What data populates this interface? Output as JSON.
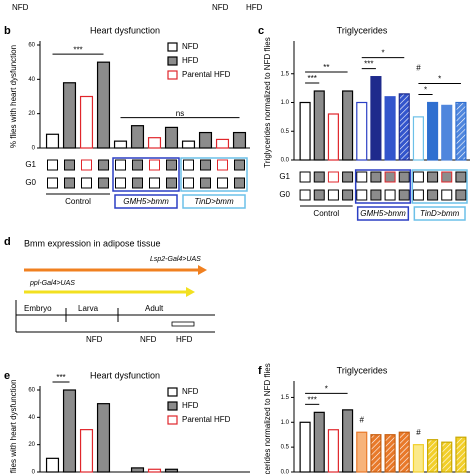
{
  "header": {
    "texts": [
      "NFD",
      "NFD",
      "HFD"
    ]
  },
  "chart_data": [
    {
      "type": "bar",
      "panel": "b",
      "title": "Heart dysfunction",
      "ylabel": "% flies with heart dysfunction",
      "values": [
        8,
        38,
        30,
        50,
        4,
        13,
        6,
        12,
        4,
        9,
        5,
        9
      ],
      "colors": [
        "#ffffff",
        "#8c8c8c",
        "#ffffff",
        "#8c8c8c",
        "#ffffff",
        "#8c8c8c",
        "#ffffff",
        "#8c8c8c",
        "#ffffff",
        "#8c8c8c",
        "#ffffff",
        "#8c8c8c"
      ],
      "edgecolors": [
        "#000000",
        "#000000",
        "#e0262b",
        "#000000",
        "#000000",
        "#000000",
        "#e0262b",
        "#000000",
        "#000000",
        "#000000",
        "#e0262b",
        "#000000"
      ],
      "ylim": [
        0,
        60
      ],
      "yticks": [
        0,
        20,
        40,
        60
      ],
      "legend": [
        {
          "name": "NFD",
          "fill": "#ffffff",
          "edge": "#000000"
        },
        {
          "name": "HFD",
          "fill": "#8c8c8c",
          "edge": "#000000"
        },
        {
          "name": "Parental HFD",
          "fill": "#ffffff",
          "edge": "#e0262b"
        }
      ],
      "annotations": [
        {
          "text": "***",
          "from": 0,
          "to": 3
        },
        {
          "text": "ns",
          "from": 4,
          "to": 11
        }
      ],
      "rows": [
        "G1",
        "G0"
      ],
      "groups": [
        {
          "label": "Control",
          "color": "#000000"
        },
        {
          "label": "GMH5>bmm",
          "color": "#2b3fc4"
        },
        {
          "label": "TinD>bmm",
          "color": "#6cc0e8"
        }
      ]
    },
    {
      "type": "bar",
      "panel": "c",
      "title": "Triglycerides",
      "ylabel": "Triglycerides normalized to NFD flies",
      "values": [
        1.0,
        1.2,
        0.8,
        1.2,
        1.0,
        1.45,
        1.1,
        1.15,
        0.75,
        1.0,
        0.95,
        1.0
      ],
      "colors": [
        "#ffffff",
        "#8c8c8c",
        "#ffffff",
        "#8c8c8c",
        "#ffffff",
        "#1e2a8c",
        "#3355cc",
        "#3355cc",
        "#ffffff",
        "#2f6fd0",
        "#4f86dd",
        "#4f86dd"
      ],
      "edgecolors": [
        "#000000",
        "#000000",
        "#e0262b",
        "#000000",
        "#2b3fc4",
        "#1e2a8c",
        "#3355cc",
        "#1e2a8c",
        "#6cc0e8",
        "#2f6fd0",
        "#4f86dd",
        "#2f6fd0"
      ],
      "hatch": [
        false,
        false,
        false,
        false,
        false,
        false,
        false,
        true,
        false,
        false,
        false,
        true
      ],
      "ylim": [
        0,
        2
      ],
      "yticks": [
        {
          "value": 0,
          "label": "0.0"
        },
        {
          "value": 0.5,
          "label": "0.5"
        },
        {
          "value": 1,
          "label": "1.0"
        },
        {
          "value": 1.5,
          "label": "1.5"
        }
      ],
      "annotations": [
        {
          "text": "***",
          "from": 0,
          "to": 1
        },
        {
          "text": "**",
          "from": 0,
          "to": 3
        },
        {
          "text": "***",
          "from": 4,
          "to": 5
        },
        {
          "text": "*",
          "from": 4,
          "to": 7
        },
        {
          "text": "*",
          "from": 8,
          "to": 9
        },
        {
          "text": "*",
          "from": 8,
          "to": 11
        },
        {
          "text": "#",
          "from": 8,
          "to": 8
        }
      ],
      "rows": [
        "G1",
        "G0"
      ],
      "groups": [
        {
          "label": "Control",
          "color": "#000000"
        },
        {
          "label": "GMH5>bmm",
          "color": "#2b3fc4"
        },
        {
          "label": "TinD>bmm",
          "color": "#6cc0e8"
        }
      ]
    },
    {
      "type": "bar",
      "panel": "e",
      "title": "Heart dysfunction",
      "ylabel": "% flies with heart dysfunction",
      "values": [
        10,
        60,
        31,
        50,
        0,
        3,
        2,
        2,
        0,
        0,
        0,
        0
      ],
      "colors": [
        "#ffffff",
        "#8c8c8c",
        "#ffffff",
        "#8c8c8c",
        "#ffffff",
        "#8c8c8c",
        "#ffffff",
        "#8c8c8c",
        "#ffffff",
        "#8c8c8c",
        "#ffffff",
        "#8c8c8c"
      ],
      "edgecolors": [
        "#000000",
        "#000000",
        "#e0262b",
        "#000000",
        "#000000",
        "#000000",
        "#e0262b",
        "#000000",
        "#000000",
        "#000000",
        "#e0262b",
        "#000000"
      ],
      "ylim": [
        0,
        60
      ],
      "yticks": [
        0,
        20,
        40,
        60
      ],
      "legend": [
        {
          "name": "NFD",
          "fill": "#ffffff",
          "edge": "#000000"
        },
        {
          "name": "HFD",
          "fill": "#8c8c8c",
          "edge": "#000000"
        },
        {
          "name": "Parental HFD",
          "fill": "#ffffff",
          "edge": "#e0262b"
        }
      ],
      "annotations": [
        {
          "text": "***",
          "from": 0,
          "to": 1
        }
      ]
    },
    {
      "type": "bar",
      "panel": "f",
      "title": "Triglycerides",
      "ylabel": "Triglycerides normalized to NFD flies",
      "values": [
        1.0,
        1.2,
        0.85,
        1.25,
        0.8,
        0.75,
        0.75,
        0.8,
        0.55,
        0.65,
        0.6,
        0.7
      ],
      "colors": [
        "#ffffff",
        "#8c8c8c",
        "#ffffff",
        "#8c8c8c",
        "#f7b37a",
        "#e8792a",
        "#e8792a",
        "#e8792a",
        "#fbe98a",
        "#f2cf2a",
        "#f2cf2a",
        "#f2cf2a"
      ],
      "edgecolors": [
        "#000000",
        "#000000",
        "#e0262b",
        "#000000",
        "#e8792a",
        "#c85f10",
        "#c85f10",
        "#c85f10",
        "#f2cf2a",
        "#c9a800",
        "#c9a800",
        "#c9a800"
      ],
      "hatch": [
        false,
        false,
        false,
        false,
        false,
        true,
        true,
        true,
        false,
        true,
        true,
        true
      ],
      "ylim": [
        0,
        1.75
      ],
      "yticks": [
        {
          "value": 0,
          "label": "0.0"
        },
        {
          "value": 0.5,
          "label": "0.5"
        },
        {
          "value": 1,
          "label": "1.0"
        },
        {
          "value": 1.5,
          "label": "1.5"
        }
      ],
      "annotations": [
        {
          "text": "***",
          "from": 0,
          "to": 1
        },
        {
          "text": "*",
          "from": 0,
          "to": 3
        },
        {
          "text": "#",
          "from": 4,
          "to": 4
        },
        {
          "text": "#",
          "from": 8,
          "to": 8
        }
      ]
    }
  ],
  "diagram": {
    "panel": "d",
    "title": "Bmm expression in adipose tissue",
    "arrow1": "Lsp2-Gal4>UAS",
    "arrow2": "ppl-Gal4>UAS",
    "stages": [
      "Embryo",
      "Larva",
      "Adult"
    ],
    "diets": [
      "NFD",
      "NFD",
      "HFD"
    ]
  }
}
